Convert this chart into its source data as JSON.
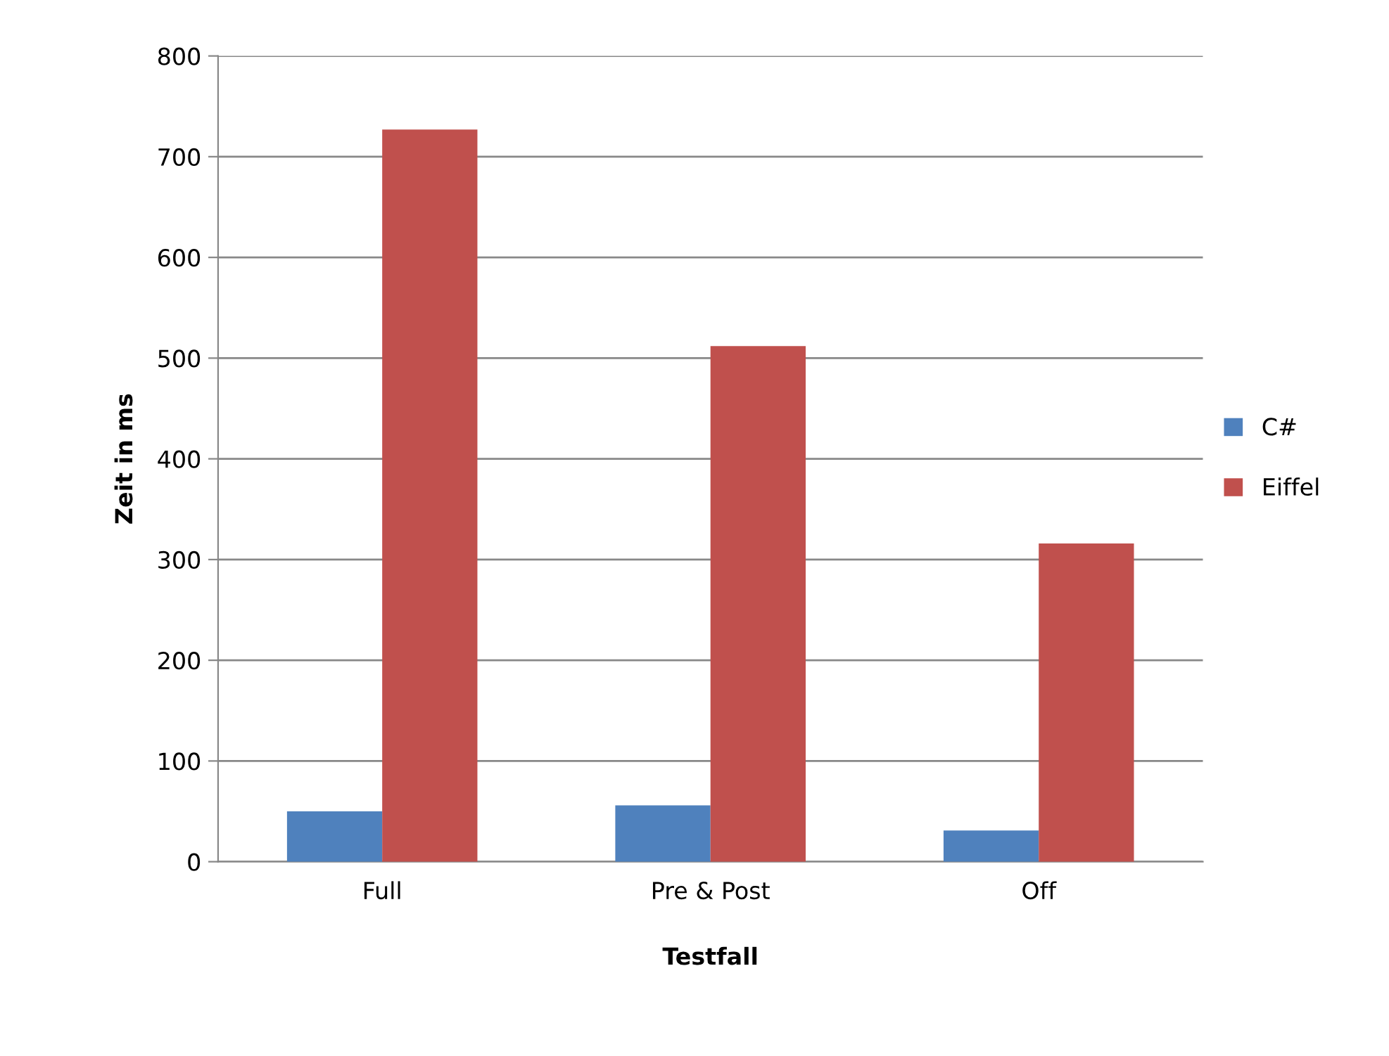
{
  "chart_data": {
    "type": "bar",
    "xlabel": "Testfall",
    "ylabel": "Zeit in ms",
    "categories": [
      "Full",
      "Pre & Post",
      "Off"
    ],
    "series": [
      {
        "name": "C#",
        "color": "#4f81bd",
        "values": [
          50,
          56,
          31
        ]
      },
      {
        "name": "Eiffel",
        "color": "#c0504d",
        "values": [
          727,
          512,
          316
        ]
      }
    ],
    "ylim": [
      0,
      800
    ],
    "yticks": [
      0,
      100,
      200,
      300,
      400,
      500,
      600,
      700,
      800
    ],
    "grid": "y",
    "legend": "right"
  }
}
